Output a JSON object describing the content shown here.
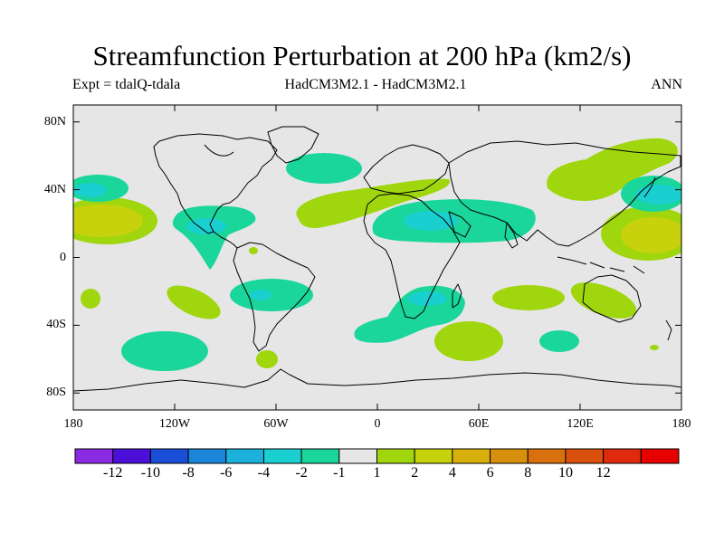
{
  "title": "Streamfunction Perturbation at 200 hPa (km2/s)",
  "experiment": "Expt = tdalQ-tdala",
  "models": "HadCM3M2.1 - HadCM3M2.1",
  "season": "ANN",
  "map": {
    "projection": "cylindrical equidistant",
    "lon_range": [
      -180,
      180
    ],
    "lat_range": [
      -90,
      90
    ],
    "y_ticks": [
      {
        "lat": 80,
        "label": "80N"
      },
      {
        "lat": 40,
        "label": "40N"
      },
      {
        "lat": 0,
        "label": "0"
      },
      {
        "lat": -40,
        "label": "40S"
      },
      {
        "lat": -80,
        "label": "80S"
      }
    ],
    "x_ticks": [
      {
        "lon": -180,
        "label": "180"
      },
      {
        "lon": -120,
        "label": "120W"
      },
      {
        "lon": -60,
        "label": "60W"
      },
      {
        "lon": 0,
        "label": "0"
      },
      {
        "lon": 60,
        "label": "60E"
      },
      {
        "lon": 120,
        "label": "120E"
      },
      {
        "lon": 180,
        "label": "180"
      }
    ],
    "background_color": "#e6e6e6",
    "coastline_color": "#000000"
  },
  "colorbar": {
    "colors": [
      "#8a2be2",
      "#4b0fd8",
      "#1a4ed6",
      "#1a85d9",
      "#1bb1da",
      "#1acfcf",
      "#1ad69a",
      "#e6e6e6",
      "#9fd60e",
      "#c8d20c",
      "#d8b00c",
      "#d8900c",
      "#d8700e",
      "#d9500e",
      "#e02a0e",
      "#e60000"
    ],
    "labels": [
      "-12",
      "-10",
      "-8",
      "-6",
      "-4",
      "-2",
      "-1",
      "1",
      "2",
      "4",
      "6",
      "8",
      "10",
      "12"
    ]
  }
}
